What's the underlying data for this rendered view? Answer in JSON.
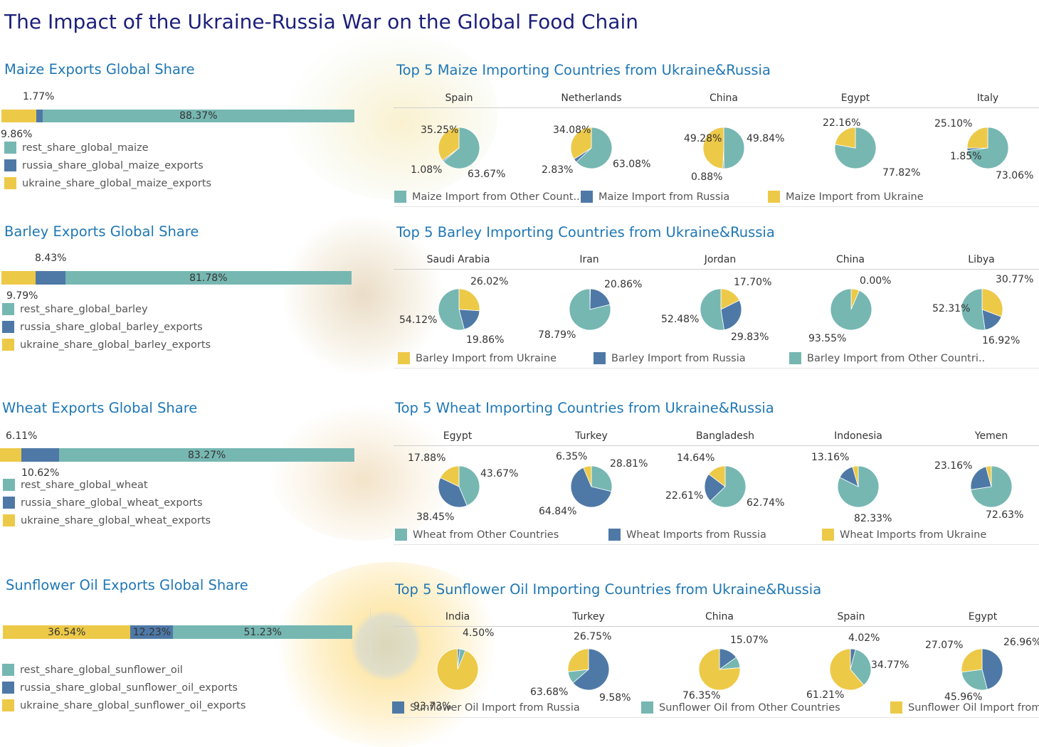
{
  "title": "The Impact of the Ukraine-Russia War on the Global Food Chain",
  "colors": {
    "rest": "#76b7b2",
    "russia": "#4e79a7",
    "ukraine": "#edc948",
    "title": "#1b1f7a",
    "section": "#1f77b4"
  },
  "sections": [
    {
      "bar_title": "Maize Exports Global Share",
      "bar_legend": [
        "rest_share_global_maize",
        "russia_share_global_maize_exports",
        "ukraine_share_global_maize_exports"
      ],
      "pie_title": "Top 5 Maize Importing Countries from Ukraine&Russia",
      "pie_legend": [
        "Maize Import from Other Count..",
        "Maize Import from Russia",
        "Maize Import from Ukraine"
      ]
    },
    {
      "bar_title": "Barley Exports Global Share",
      "bar_legend": [
        "rest_share_global_barley",
        "russia_share_global_barley_exports",
        "ukraine_share_global_barley_exports"
      ],
      "pie_title": "Top 5 Barley Importing Countries from Ukraine&Russia",
      "pie_legend": [
        "Barley Import from Ukraine",
        "Barley Import from Russia",
        "Barley Import from Other Countri.."
      ]
    },
    {
      "bar_title": "Wheat Exports Global Share",
      "bar_legend": [
        "rest_share_global_wheat",
        "russia_share_global_wheat_exports",
        "ukraine_share_global_wheat_exports"
      ],
      "pie_title": "Top 5 Wheat Importing Countries from Ukraine&Russia",
      "pie_legend": [
        "Wheat from Other Countries",
        "Wheat Imports from Russia",
        "Wheat Imports from Ukraine"
      ]
    },
    {
      "bar_title": "Sunflower Oil Exports Global Share",
      "bar_legend": [
        "rest_share_global_sunflower_oil",
        "russia_share_global_sunflower_oil_exports",
        "ukraine_share_global_sunflower_oil_exports"
      ],
      "pie_title": "Top 5 Sunflower Oil Importing Countries from Ukraine&Russia",
      "pie_legend": [
        "Sunflower Oil Import from Russia",
        "Sunflower Oil from Other Countries",
        "Sunflower Oil Import from"
      ]
    }
  ],
  "chart_data": [
    {
      "type": "bar",
      "name": "Maize Exports Global Share",
      "stacked": true,
      "series": [
        {
          "key": "ukraine",
          "value": 9.86,
          "label": "9.86%"
        },
        {
          "key": "russia",
          "value": 1.77,
          "label": "1.77%"
        },
        {
          "key": "rest",
          "value": 88.37,
          "label": "88.37%"
        }
      ]
    },
    {
      "type": "bar",
      "name": "Barley Exports Global Share",
      "stacked": true,
      "series": [
        {
          "key": "ukraine",
          "value": 9.79,
          "label": "9.79%"
        },
        {
          "key": "russia",
          "value": 8.43,
          "label": "8.43%"
        },
        {
          "key": "rest",
          "value": 81.78,
          "label": "81.78%"
        }
      ]
    },
    {
      "type": "bar",
      "name": "Wheat Exports Global Share",
      "stacked": true,
      "series": [
        {
          "key": "ukraine",
          "value": 6.11,
          "label": "6.11%"
        },
        {
          "key": "russia",
          "value": 10.62,
          "label": "10.62%"
        },
        {
          "key": "rest",
          "value": 83.27,
          "label": "83.27%"
        }
      ]
    },
    {
      "type": "bar",
      "name": "Sunflower Oil Exports Global Share",
      "stacked": true,
      "series": [
        {
          "key": "ukraine",
          "value": 36.54,
          "label": "36.54%"
        },
        {
          "key": "russia",
          "value": 12.23,
          "label": "12.23%"
        },
        {
          "key": "rest",
          "value": 51.23,
          "label": "51.23%"
        }
      ]
    },
    {
      "type": "pie",
      "name": "Top 5 Maize Importing Countries from Ukraine&Russia",
      "countries": [
        {
          "name": "Spain",
          "ukraine": 35.25,
          "russia": 1.08,
          "rest": 63.67,
          "labels": [
            "35.25%",
            "1.08%",
            "63.67%"
          ]
        },
        {
          "name": "Netherlands",
          "ukraine": 34.08,
          "russia": 2.83,
          "rest": 63.08,
          "labels": [
            "34.08%",
            "2.83%",
            "63.08%"
          ]
        },
        {
          "name": "China",
          "ukraine": 49.28,
          "russia": 0.88,
          "rest": 49.84,
          "labels": [
            "49.28%",
            "0.88%",
            "49.84%"
          ]
        },
        {
          "name": "Egypt",
          "ukraine": 22.16,
          "russia": 0.02,
          "rest": 77.82,
          "labels": [
            "22.16%",
            "77.82%"
          ]
        },
        {
          "name": "Italy",
          "ukraine": 25.1,
          "russia": 1.85,
          "rest": 73.06,
          "labels": [
            "25.10%",
            "1.85%",
            "73.06%"
          ]
        }
      ]
    },
    {
      "type": "pie",
      "name": "Top 5 Barley Importing Countries from Ukraine&Russia",
      "countries": [
        {
          "name": "Saudi Arabia",
          "ukraine": 26.02,
          "russia": 19.86,
          "rest": 54.12,
          "labels": [
            "26.02%",
            "19.86%",
            "54.12%"
          ]
        },
        {
          "name": "Iran",
          "ukraine": 0.35,
          "russia": 20.86,
          "rest": 78.79,
          "labels": [
            "20.86%",
            "78.79%"
          ]
        },
        {
          "name": "Jordan",
          "ukraine": 17.7,
          "russia": 29.83,
          "rest": 52.48,
          "labels": [
            "17.70%",
            "29.83%",
            "52.48%"
          ]
        },
        {
          "name": "China",
          "ukraine": 6.45,
          "russia": 0.0,
          "rest": 93.55,
          "labels": [
            "0.00%",
            "93.55%"
          ]
        },
        {
          "name": "Libya",
          "ukraine": 30.77,
          "russia": 16.92,
          "rest": 52.31,
          "labels": [
            "30.77%",
            "16.92%",
            "52.31%"
          ]
        }
      ]
    },
    {
      "type": "pie",
      "name": "Top 5 Wheat Importing Countries from Ukraine&Russia",
      "countries": [
        {
          "name": "Egypt",
          "ukraine": 17.88,
          "russia": 38.45,
          "rest": 43.67,
          "labels": [
            "17.88%",
            "38.45%",
            "43.67%"
          ]
        },
        {
          "name": "Turkey",
          "ukraine": 6.35,
          "russia": 64.84,
          "rest": 28.81,
          "labels": [
            "6.35%",
            "64.84%",
            "28.81%"
          ]
        },
        {
          "name": "Bangladesh",
          "ukraine": 14.64,
          "russia": 22.61,
          "rest": 62.74,
          "labels": [
            "14.64%",
            "22.61%",
            "62.74%"
          ]
        },
        {
          "name": "Indonesia",
          "ukraine": 4.51,
          "russia": 13.16,
          "rest": 82.33,
          "labels": [
            "13.16%",
            "82.33%"
          ]
        },
        {
          "name": "Yemen",
          "ukraine": 4.21,
          "russia": 23.16,
          "rest": 72.63,
          "labels": [
            "23.16%",
            "72.63%"
          ]
        }
      ]
    },
    {
      "type": "pie",
      "name": "Top 5 Sunflower Oil Importing Countries from Ukraine&Russia",
      "countries": [
        {
          "name": "India",
          "ukraine": 93.73,
          "russia": 1.77,
          "rest": 4.5,
          "labels": [
            "93.73%",
            "4.50%"
          ]
        },
        {
          "name": "Turkey",
          "ukraine": 26.75,
          "russia": 63.68,
          "rest": 9.58,
          "labels": [
            "26.75%",
            "63.68%",
            "9.58%"
          ]
        },
        {
          "name": "China",
          "ukraine": 76.35,
          "russia": 15.07,
          "rest": 8.58,
          "labels": [
            "76.35%",
            "15.07%"
          ]
        },
        {
          "name": "Spain",
          "ukraine": 61.21,
          "russia": 4.02,
          "rest": 34.77,
          "labels": [
            "61.21%",
            "4.02%",
            "34.77%"
          ]
        },
        {
          "name": "Egypt",
          "ukraine": 27.07,
          "russia": 45.96,
          "rest": 26.96,
          "labels": [
            "27.07%",
            "45.96%",
            "26.96%"
          ]
        }
      ]
    }
  ]
}
